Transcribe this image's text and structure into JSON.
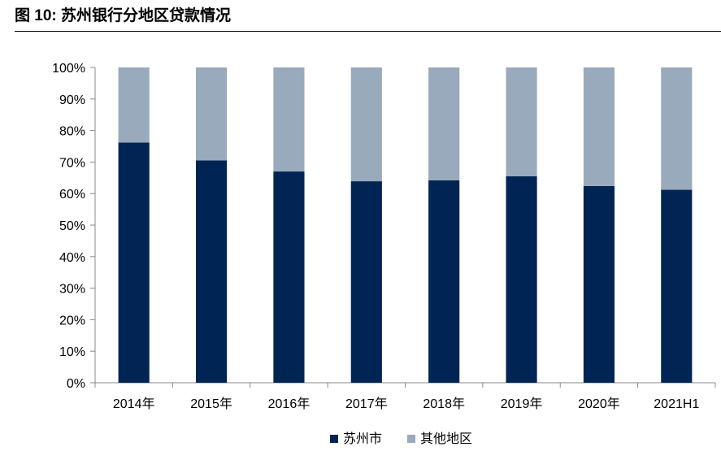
{
  "figure": {
    "label": "图 10:",
    "title": "苏州银行分地区贷款情况"
  },
  "colors": {
    "series_0": "#002554",
    "series_1": "#98AABB",
    "axis": "#888888"
  },
  "chart_data": {
    "type": "bar",
    "stacked": true,
    "categories": [
      "2014年",
      "2015年",
      "2016年",
      "2017年",
      "2018年",
      "2019年",
      "2020年",
      "2021H1"
    ],
    "series": [
      {
        "name": "苏州市",
        "values": [
          76.2,
          70.5,
          67.0,
          63.9,
          64.2,
          65.5,
          62.4,
          61.2
        ]
      },
      {
        "name": "其他地区",
        "values": [
          23.8,
          29.5,
          33.0,
          36.1,
          35.8,
          34.5,
          37.6,
          38.8
        ]
      }
    ],
    "ylim": [
      0,
      100
    ],
    "yticks": [
      "0%",
      "10%",
      "20%",
      "30%",
      "40%",
      "50%",
      "60%",
      "70%",
      "80%",
      "90%",
      "100%"
    ],
    "xlabel": "",
    "ylabel": "",
    "grid": false,
    "legend_position": "bottom"
  }
}
